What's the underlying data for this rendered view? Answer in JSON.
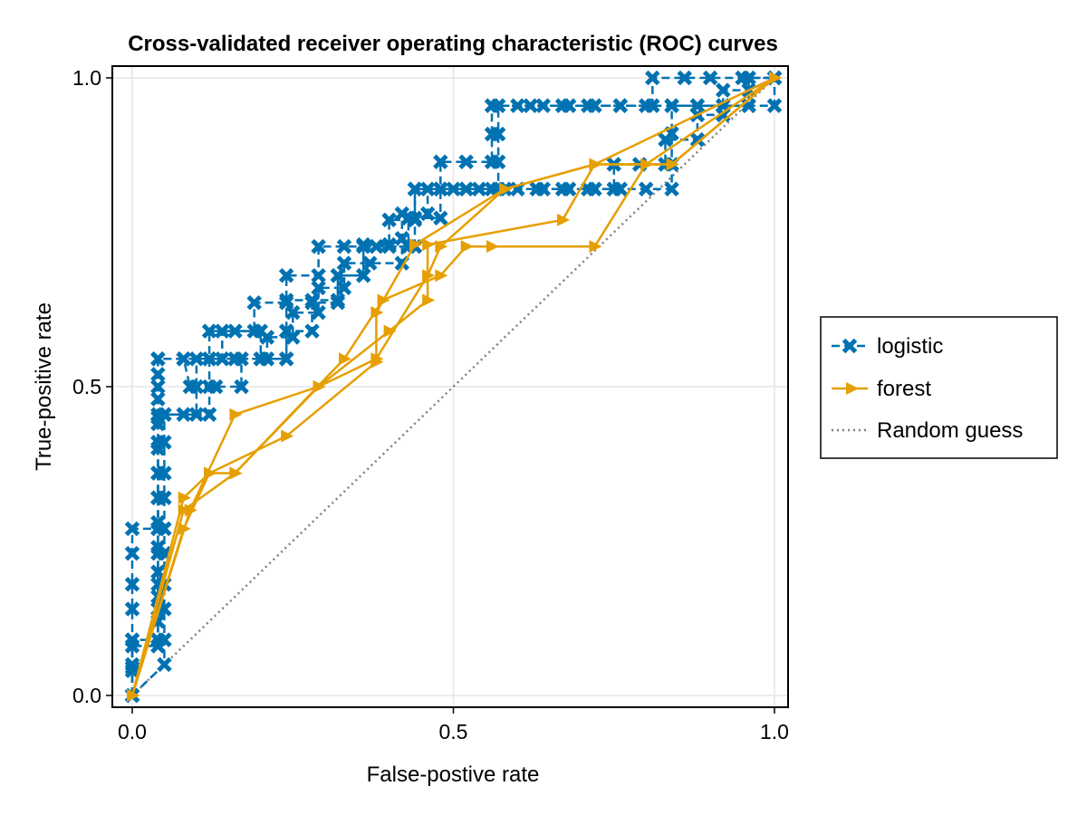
{
  "chart_data": {
    "type": "line",
    "title": "Cross-validated receiver operating characteristic (ROC) curves",
    "xlabel": "False-postive rate",
    "ylabel": "True-positive rate",
    "xlim": [
      0,
      1
    ],
    "ylim": [
      0,
      1
    ],
    "xticks": [
      0.0,
      0.5,
      1.0
    ],
    "xtick_labels": [
      "0.0",
      "0.5",
      "1.0"
    ],
    "yticks": [
      0.0,
      0.5,
      1.0
    ],
    "ytick_labels": [
      "0.0",
      "0.5",
      "1.0"
    ],
    "grid": true,
    "legend_position": "right",
    "colors": {
      "logistic": "#0072b2",
      "forest": "#e69f00",
      "random": "#7f7f7f"
    },
    "series": [
      {
        "name": "logistic",
        "style": "dashed",
        "marker": "x",
        "folds": [
          [
            [
              0,
              0
            ],
            [
              0,
              0.045
            ],
            [
              0,
              0.09
            ],
            [
              0,
              0.14
            ],
            [
              0,
              0.18
            ],
            [
              0,
              0.23
            ],
            [
              0,
              0.27
            ],
            [
              0.04,
              0.27
            ],
            [
              0.04,
              0.32
            ],
            [
              0.04,
              0.36
            ],
            [
              0.04,
              0.41
            ],
            [
              0.04,
              0.45
            ],
            [
              0.04,
              0.5
            ],
            [
              0.04,
              0.545
            ],
            [
              0.08,
              0.545
            ],
            [
              0.12,
              0.545
            ],
            [
              0.16,
              0.545
            ],
            [
              0.2,
              0.545
            ],
            [
              0.24,
              0.545
            ],
            [
              0.24,
              0.59
            ],
            [
              0.24,
              0.64
            ],
            [
              0.28,
              0.64
            ],
            [
              0.32,
              0.64
            ],
            [
              0.32,
              0.68
            ],
            [
              0.36,
              0.68
            ],
            [
              0.36,
              0.73
            ],
            [
              0.4,
              0.73
            ],
            [
              0.4,
              0.77
            ],
            [
              0.44,
              0.77
            ],
            [
              0.44,
              0.82
            ],
            [
              0.48,
              0.82
            ],
            [
              0.52,
              0.82
            ],
            [
              0.56,
              0.82
            ],
            [
              0.6,
              0.82
            ],
            [
              0.64,
              0.82
            ],
            [
              0.68,
              0.82
            ],
            [
              0.72,
              0.82
            ],
            [
              0.76,
              0.82
            ],
            [
              0.8,
              0.82
            ],
            [
              0.84,
              0.82
            ],
            [
              0.84,
              0.86
            ],
            [
              0.84,
              0.91
            ],
            [
              0.84,
              0.955
            ],
            [
              0.88,
              0.955
            ],
            [
              0.92,
              0.955
            ],
            [
              0.96,
              0.955
            ],
            [
              1,
              0.955
            ],
            [
              1,
              1
            ]
          ],
          [
            [
              0,
              0
            ],
            [
              0.05,
              0.05
            ],
            [
              0.05,
              0.09
            ],
            [
              0.05,
              0.14
            ],
            [
              0.05,
              0.18
            ],
            [
              0.05,
              0.23
            ],
            [
              0.05,
              0.27
            ],
            [
              0.05,
              0.32
            ],
            [
              0.05,
              0.36
            ],
            [
              0.05,
              0.41
            ],
            [
              0.05,
              0.455
            ],
            [
              0.1,
              0.455
            ],
            [
              0.1,
              0.5
            ],
            [
              0.1,
              0.545
            ],
            [
              0.14,
              0.545
            ],
            [
              0.14,
              0.59
            ],
            [
              0.19,
              0.59
            ],
            [
              0.19,
              0.636
            ],
            [
              0.24,
              0.636
            ],
            [
              0.24,
              0.68
            ],
            [
              0.29,
              0.68
            ],
            [
              0.29,
              0.727
            ],
            [
              0.33,
              0.727
            ],
            [
              0.38,
              0.727
            ],
            [
              0.43,
              0.727
            ],
            [
              0.43,
              0.773
            ],
            [
              0.48,
              0.773
            ],
            [
              0.48,
              0.82
            ],
            [
              0.52,
              0.82
            ],
            [
              0.57,
              0.82
            ],
            [
              0.57,
              0.864
            ],
            [
              0.57,
              0.909
            ],
            [
              0.57,
              0.955
            ],
            [
              0.62,
              0.955
            ],
            [
              0.67,
              0.955
            ],
            [
              0.71,
              0.955
            ],
            [
              0.76,
              0.955
            ],
            [
              0.81,
              0.955
            ],
            [
              0.81,
              1
            ],
            [
              0.86,
              1
            ],
            [
              0.9,
              1
            ],
            [
              0.95,
              1
            ],
            [
              1,
              1
            ]
          ],
          [
            [
              0,
              0
            ],
            [
              0,
              0.05
            ],
            [
              0,
              0.09
            ],
            [
              0.04,
              0.09
            ],
            [
              0.04,
              0.14
            ],
            [
              0.04,
              0.18
            ],
            [
              0.04,
              0.23
            ],
            [
              0.04,
              0.27
            ],
            [
              0.04,
              0.32
            ],
            [
              0.04,
              0.36
            ],
            [
              0.04,
              0.41
            ],
            [
              0.04,
              0.455
            ],
            [
              0.08,
              0.455
            ],
            [
              0.12,
              0.455
            ],
            [
              0.12,
              0.5
            ],
            [
              0.12,
              0.545
            ],
            [
              0.12,
              0.59
            ],
            [
              0.16,
              0.59
            ],
            [
              0.2,
              0.59
            ],
            [
              0.2,
              0.545
            ],
            [
              0.24,
              0.545
            ],
            [
              0.24,
              0.59
            ],
            [
              0.28,
              0.59
            ],
            [
              0.28,
              0.636
            ],
            [
              0.32,
              0.636
            ],
            [
              0.32,
              0.68
            ],
            [
              0.36,
              0.68
            ],
            [
              0.36,
              0.727
            ],
            [
              0.4,
              0.727
            ],
            [
              0.44,
              0.727
            ],
            [
              0.44,
              0.773
            ],
            [
              0.44,
              0.82
            ],
            [
              0.48,
              0.82
            ],
            [
              0.48,
              0.864
            ],
            [
              0.52,
              0.864
            ],
            [
              0.56,
              0.864
            ],
            [
              0.56,
              0.909
            ],
            [
              0.56,
              0.955
            ],
            [
              0.6,
              0.955
            ],
            [
              0.64,
              0.955
            ],
            [
              0.68,
              0.955
            ],
            [
              0.72,
              0.955
            ],
            [
              0.76,
              0.955
            ],
            [
              0.8,
              0.955
            ],
            [
              0.84,
              0.955
            ],
            [
              0.88,
              0.955
            ],
            [
              0.92,
              0.955
            ],
            [
              0.96,
              0.955
            ],
            [
              0.96,
              1
            ],
            [
              1,
              1
            ]
          ],
          [
            [
              0,
              0
            ],
            [
              0,
              0.04
            ],
            [
              0,
              0.08
            ],
            [
              0.04,
              0.08
            ],
            [
              0.04,
              0.12
            ],
            [
              0.04,
              0.16
            ],
            [
              0.04,
              0.2
            ],
            [
              0.04,
              0.24
            ],
            [
              0.04,
              0.28
            ],
            [
              0.04,
              0.32
            ],
            [
              0.04,
              0.36
            ],
            [
              0.04,
              0.4
            ],
            [
              0.04,
              0.44
            ],
            [
              0.04,
              0.48
            ],
            [
              0.04,
              0.52
            ],
            [
              0.04,
              0.545
            ],
            [
              0.08,
              0.545
            ],
            [
              0.09,
              0.5
            ],
            [
              0.13,
              0.5
            ],
            [
              0.17,
              0.5
            ],
            [
              0.17,
              0.545
            ],
            [
              0.21,
              0.545
            ],
            [
              0.21,
              0.58
            ],
            [
              0.25,
              0.58
            ],
            [
              0.25,
              0.62
            ],
            [
              0.29,
              0.62
            ],
            [
              0.29,
              0.66
            ],
            [
              0.33,
              0.66
            ],
            [
              0.33,
              0.7
            ],
            [
              0.37,
              0.7
            ],
            [
              0.42,
              0.7
            ],
            [
              0.42,
              0.74
            ],
            [
              0.42,
              0.78
            ],
            [
              0.46,
              0.78
            ],
            [
              0.46,
              0.82
            ],
            [
              0.5,
              0.82
            ],
            [
              0.54,
              0.82
            ],
            [
              0.58,
              0.82
            ],
            [
              0.63,
              0.82
            ],
            [
              0.67,
              0.82
            ],
            [
              0.71,
              0.82
            ],
            [
              0.75,
              0.82
            ],
            [
              0.75,
              0.86
            ],
            [
              0.79,
              0.86
            ],
            [
              0.83,
              0.86
            ],
            [
              0.83,
              0.9
            ],
            [
              0.88,
              0.9
            ],
            [
              0.88,
              0.94
            ],
            [
              0.92,
              0.94
            ],
            [
              0.92,
              0.98
            ],
            [
              0.96,
              0.98
            ],
            [
              1,
              1
            ]
          ]
        ]
      },
      {
        "name": "forest",
        "style": "solid",
        "marker": "triangle-right",
        "folds": [
          [
            [
              0,
              0
            ],
            [
              0.08,
              0.27
            ],
            [
              0.12,
              0.36
            ],
            [
              0.24,
              0.42
            ],
            [
              0.38,
              0.54
            ],
            [
              0.38,
              0.62
            ],
            [
              0.44,
              0.73
            ],
            [
              0.58,
              0.82
            ],
            [
              0.72,
              0.86
            ],
            [
              0.84,
              0.86
            ],
            [
              1,
              1
            ]
          ],
          [
            [
              0,
              0
            ],
            [
              0.09,
              0.3
            ],
            [
              0.16,
              0.455
            ],
            [
              0.29,
              0.5
            ],
            [
              0.4,
              0.59
            ],
            [
              0.46,
              0.64
            ],
            [
              0.46,
              0.73
            ],
            [
              0.67,
              0.77
            ],
            [
              0.72,
              0.86
            ],
            [
              1,
              1
            ]
          ],
          [
            [
              0,
              0
            ],
            [
              0.08,
              0.32
            ],
            [
              0.12,
              0.36
            ],
            [
              0.16,
              0.36
            ],
            [
              0.33,
              0.545
            ],
            [
              0.39,
              0.64
            ],
            [
              0.48,
              0.68
            ],
            [
              0.52,
              0.727
            ],
            [
              0.56,
              0.727
            ],
            [
              0.72,
              0.727
            ],
            [
              0.8,
              0.86
            ],
            [
              1,
              1
            ]
          ],
          [
            [
              0,
              0
            ],
            [
              0.08,
              0.3
            ],
            [
              0.16,
              0.36
            ],
            [
              0.29,
              0.5
            ],
            [
              0.38,
              0.545
            ],
            [
              0.46,
              0.68
            ],
            [
              0.48,
              0.727
            ],
            [
              0.58,
              0.82
            ],
            [
              0.72,
              0.86
            ],
            [
              0.84,
              0.86
            ],
            [
              1,
              1
            ]
          ]
        ]
      },
      {
        "name": "Random guess",
        "style": "dotted",
        "marker": "none",
        "points": [
          [
            0,
            0
          ],
          [
            1,
            1
          ]
        ]
      }
    ],
    "legend": [
      "logistic",
      "forest",
      "Random guess"
    ]
  }
}
